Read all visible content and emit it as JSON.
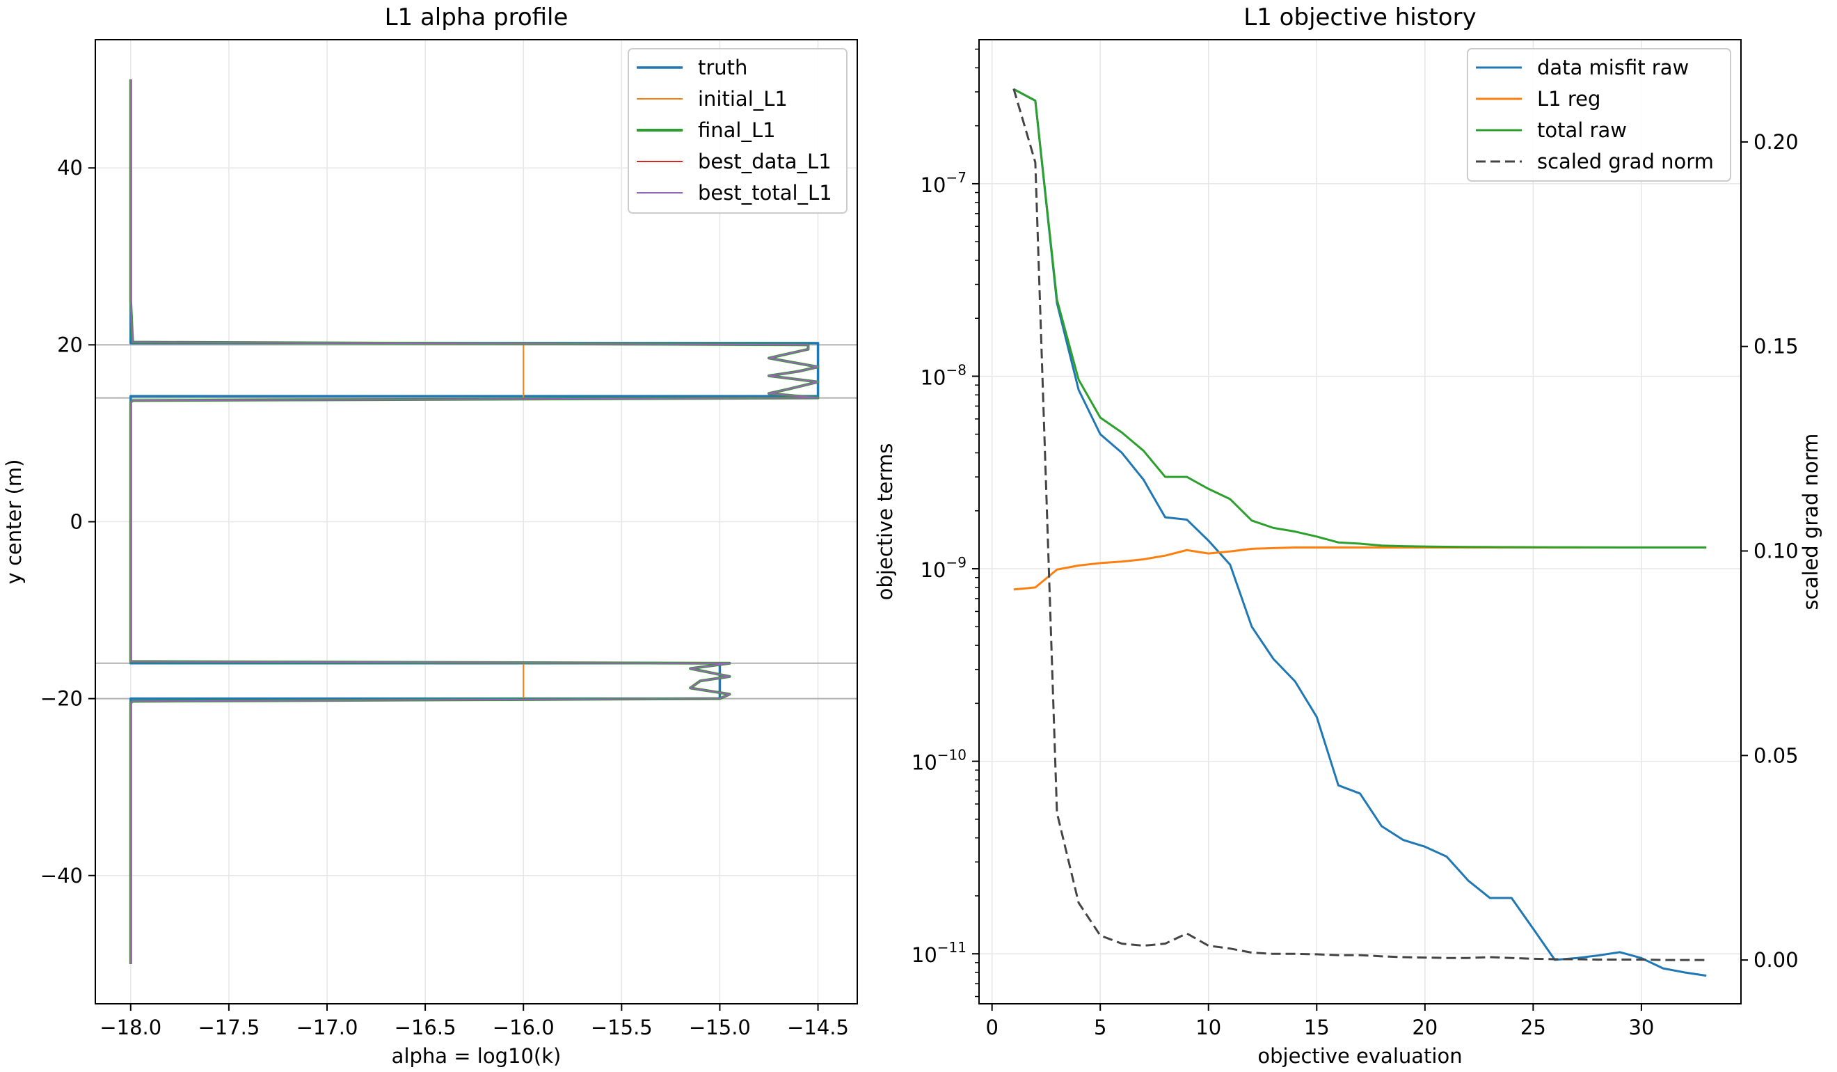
{
  "chart_data": [
    {
      "type": "line",
      "title": "L1 alpha profile",
      "xlabel": "alpha = log10(k)",
      "ylabel": "y center (m)",
      "xlim": [
        -18.18,
        -14.3
      ],
      "ylim": [
        -54.5,
        54.5
      ],
      "xticks": [
        -18.0,
        -17.5,
        -17.0,
        -16.5,
        -16.0,
        -15.5,
        -15.0,
        -14.5
      ],
      "xtick_labels": [
        "−18.0",
        "−17.5",
        "−17.0",
        "−16.5",
        "−16.0",
        "−15.5",
        "−15.0",
        "−14.5"
      ],
      "yticks": [
        -40,
        -20,
        0,
        20,
        40
      ],
      "ytick_labels": [
        "−40",
        "−20",
        "0",
        "20",
        "40"
      ],
      "grid": true,
      "legend_position": "top-right",
      "hlines": [
        20,
        14,
        -16,
        -20
      ],
      "series": [
        {
          "name": "truth",
          "color": "#1f77b4",
          "linewidth": 3.5,
          "points": [
            [
              -18,
              50
            ],
            [
              -18,
              20.2
            ],
            [
              -14.5,
              20.2
            ],
            [
              -14.5,
              14.2
            ],
            [
              -18,
              14.2
            ],
            [
              -18,
              -16
            ],
            [
              -15,
              -16
            ],
            [
              -15,
              -20
            ],
            [
              -18,
              -20
            ],
            [
              -18,
              -50
            ]
          ]
        },
        {
          "name": "initial_L1",
          "color": "#ff7f0e",
          "linewidth": 2,
          "points": [
            [
              -16,
              20
            ],
            [
              -16,
              14
            ],
            [
              null,
              null
            ],
            [
              -16,
              -16
            ],
            [
              -16,
              -20
            ]
          ]
        },
        {
          "name": "final_L1",
          "color": "#2ca02c",
          "linewidth": 4,
          "points": [
            [
              -18,
              50
            ],
            [
              -18,
              25
            ],
            [
              -17.99,
              20.3
            ],
            [
              -14.55,
              20
            ],
            [
              -14.55,
              19.5
            ],
            [
              -14.75,
              18.5
            ],
            [
              -14.5,
              17.5
            ],
            [
              -14.6,
              17
            ],
            [
              -14.75,
              16.5
            ],
            [
              -14.5,
              15.8
            ],
            [
              -14.65,
              15
            ],
            [
              -14.75,
              14.5
            ],
            [
              -14.5,
              14
            ],
            [
              -17.99,
              13.7
            ],
            [
              -18,
              13.5
            ],
            [
              -18,
              -15.8
            ],
            [
              -14.95,
              -16
            ],
            [
              -15.15,
              -16.6
            ],
            [
              -14.95,
              -17.5
            ],
            [
              -15.1,
              -18
            ],
            [
              -15.15,
              -18.8
            ],
            [
              -14.95,
              -19.5
            ],
            [
              -15.0,
              -20
            ],
            [
              -17.99,
              -20.3
            ],
            [
              -18,
              -20.5
            ],
            [
              -18,
              -50
            ]
          ]
        },
        {
          "name": "best_data_L1",
          "color": "#d62728",
          "linewidth": 2,
          "points": [
            [
              -18,
              50
            ],
            [
              -18,
              25
            ],
            [
              -17.99,
              20.3
            ],
            [
              -14.55,
              20
            ],
            [
              -14.55,
              19.5
            ],
            [
              -14.75,
              18.5
            ],
            [
              -14.5,
              17.5
            ],
            [
              -14.6,
              17
            ],
            [
              -14.75,
              16.5
            ],
            [
              -14.5,
              15.8
            ],
            [
              -14.65,
              15
            ],
            [
              -14.75,
              14.5
            ],
            [
              -14.5,
              14
            ],
            [
              -17.99,
              13.7
            ],
            [
              -18,
              13.5
            ],
            [
              -18,
              -15.8
            ],
            [
              -14.95,
              -16
            ],
            [
              -15.15,
              -16.6
            ],
            [
              -14.95,
              -17.5
            ],
            [
              -15.1,
              -18
            ],
            [
              -15.15,
              -18.8
            ],
            [
              -14.95,
              -19.5
            ],
            [
              -15.0,
              -20
            ],
            [
              -17.99,
              -20.3
            ],
            [
              -18,
              -20.5
            ],
            [
              -18,
              -50
            ]
          ]
        },
        {
          "name": "best_total_L1",
          "color": "#9467bd",
          "linewidth": 2,
          "points": [
            [
              -18,
              50
            ],
            [
              -18,
              25
            ],
            [
              -17.99,
              20.3
            ],
            [
              -14.55,
              20
            ],
            [
              -14.55,
              19.5
            ],
            [
              -14.75,
              18.5
            ],
            [
              -14.5,
              17.5
            ],
            [
              -14.6,
              17
            ],
            [
              -14.75,
              16.5
            ],
            [
              -14.5,
              15.8
            ],
            [
              -14.65,
              15
            ],
            [
              -14.75,
              14.5
            ],
            [
              -14.5,
              14
            ],
            [
              -17.99,
              13.7
            ],
            [
              -18,
              13.5
            ],
            [
              -18,
              -15.8
            ],
            [
              -14.95,
              -16
            ],
            [
              -15.15,
              -16.6
            ],
            [
              -14.95,
              -17.5
            ],
            [
              -15.1,
              -18
            ],
            [
              -15.15,
              -18.8
            ],
            [
              -14.95,
              -19.5
            ],
            [
              -15.0,
              -20
            ],
            [
              -17.99,
              -20.3
            ],
            [
              -18,
              -20.5
            ],
            [
              -18,
              -50
            ]
          ]
        }
      ]
    },
    {
      "type": "line",
      "title": "L1 objective history",
      "xlabel": "objective evaluation",
      "ylabel": "objective terms",
      "ylabel_right": "scaled grad norm",
      "xlim": [
        -0.6,
        34.6
      ],
      "yscale": "log",
      "ylim": [
        5.5e-12,
        5.6e-07
      ],
      "ylim_right": [
        -0.0107,
        0.225
      ],
      "xticks": [
        0,
        5,
        10,
        15,
        20,
        25,
        30
      ],
      "xtick_labels": [
        "0",
        "5",
        "10",
        "15",
        "20",
        "25",
        "30"
      ],
      "yticks_log_exponents": [
        -11,
        -10,
        -9,
        -8,
        -7
      ],
      "ytick_labels": [
        "10",
        "10",
        "10",
        "10",
        "10"
      ],
      "ytick_exponent_labels": [
        "−11",
        "−10",
        "−9",
        "−8",
        "−7"
      ],
      "yticks_right": [
        0.0,
        0.05,
        0.1,
        0.15,
        0.2
      ],
      "ytick_labels_right": [
        "0.00",
        "0.05",
        "0.10",
        "0.15",
        "0.20"
      ],
      "grid": true,
      "legend_position": "top-right",
      "x": [
        1,
        2,
        3,
        4,
        5,
        6,
        7,
        8,
        9,
        10,
        11,
        12,
        13,
        14,
        15,
        16,
        17,
        18,
        19,
        20,
        21,
        22,
        23,
        24,
        25,
        26,
        27,
        28,
        29,
        30,
        31,
        32,
        33
      ],
      "series": [
        {
          "name": "data misfit raw",
          "axis": "left",
          "color": "#1f77b4",
          "style": "solid",
          "values": [
            3.1e-07,
            2.7e-07,
            2.4e-08,
            8.5e-09,
            5e-09,
            4e-09,
            2.9e-09,
            1.85e-09,
            1.8e-09,
            1.4e-09,
            1.05e-09,
            5e-10,
            3.4e-10,
            2.6e-10,
            1.7e-10,
            7.5e-11,
            6.8e-11,
            4.6e-11,
            3.9e-11,
            3.6e-11,
            3.2e-11,
            2.4e-11,
            1.95e-11,
            1.95e-11,
            1.35e-11,
            9.3e-12,
            9.5e-12,
            9.8e-12,
            1.02e-11,
            9.5e-12,
            8.4e-12,
            8e-12,
            7.7e-12
          ]
        },
        {
          "name": "L1 reg",
          "axis": "left",
          "color": "#ff7f0e",
          "style": "solid",
          "values": [
            7.8e-10,
            8e-10,
            9.9e-10,
            1.04e-09,
            1.07e-09,
            1.09e-09,
            1.12e-09,
            1.17e-09,
            1.25e-09,
            1.2e-09,
            1.23e-09,
            1.27e-09,
            1.28e-09,
            1.29e-09,
            1.29e-09,
            1.29e-09,
            1.29e-09,
            1.29e-09,
            1.29e-09,
            1.29e-09,
            1.29e-09,
            1.29e-09,
            1.29e-09,
            1.29e-09,
            1.29e-09,
            1.29e-09,
            1.29e-09,
            1.29e-09,
            1.29e-09,
            1.29e-09,
            1.29e-09,
            1.29e-09,
            1.29e-09
          ]
        },
        {
          "name": "total raw",
          "axis": "left",
          "color": "#2ca02c",
          "style": "solid",
          "values": [
            3.1e-07,
            2.7e-07,
            2.5e-08,
            9.6e-09,
            6.1e-09,
            5.1e-09,
            4.1e-09,
            3e-09,
            3e-09,
            2.6e-09,
            2.3e-09,
            1.78e-09,
            1.63e-09,
            1.56e-09,
            1.47e-09,
            1.37e-09,
            1.35e-09,
            1.32e-09,
            1.31e-09,
            1.305e-09,
            1.3e-09,
            1.298e-09,
            1.296e-09,
            1.295e-09,
            1.294e-09,
            1.293e-09,
            1.292e-09,
            1.291e-09,
            1.29e-09,
            1.29e-09,
            1.29e-09,
            1.29e-09,
            1.29e-09
          ]
        },
        {
          "name": "scaled grad norm",
          "axis": "right",
          "color": "#444444",
          "style": "dashed",
          "values": [
            0.213,
            0.195,
            0.036,
            0.014,
            0.006,
            0.004,
            0.0035,
            0.004,
            0.0065,
            0.0035,
            0.0028,
            0.0018,
            0.0015,
            0.0015,
            0.0014,
            0.0012,
            0.0012,
            0.0009,
            0.0007,
            0.0006,
            0.0005,
            0.0005,
            0.0007,
            0.0005,
            0.0003,
            0.0002,
            0.0002,
            0.0001,
            0.0001,
            0.0001,
            0.0,
            0.0,
            0.0
          ]
        }
      ]
    }
  ]
}
